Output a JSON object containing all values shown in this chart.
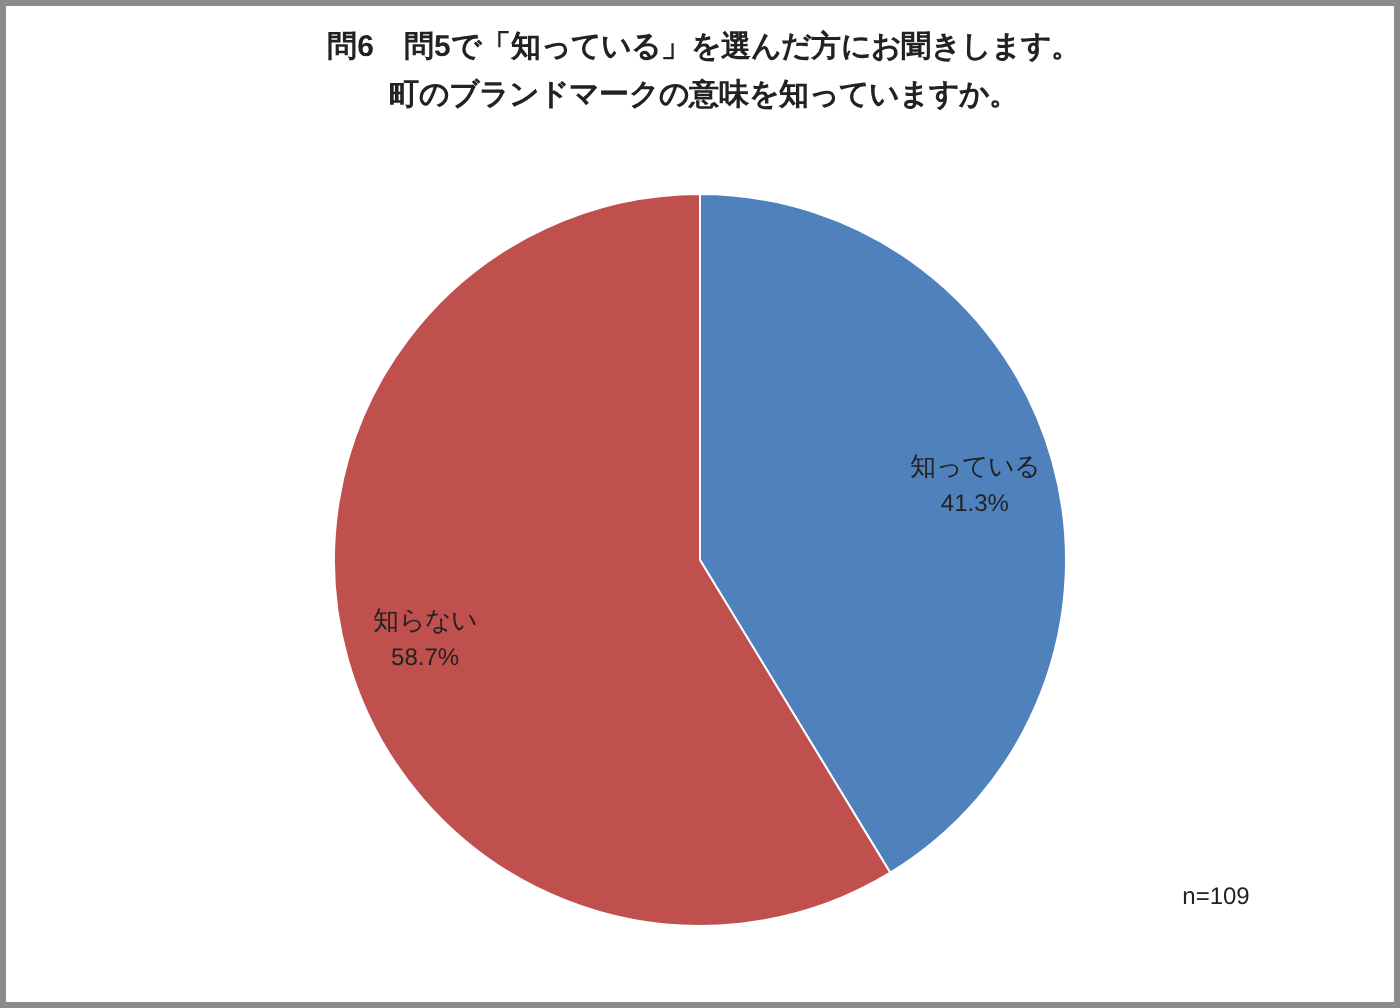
{
  "chart_data": {
    "type": "pie",
    "title": "問6　問5で「知っている」を選んだ方にお聞きします。町のブランドマークの意味を知っていますか。",
    "categories": [
      "知っている",
      "知らない"
    ],
    "values": [
      41.3,
      58.7
    ],
    "colors": [
      "#4f81bd",
      "#c0504d"
    ],
    "value_labels": [
      "41.3%",
      "58.7%"
    ],
    "annotations": [
      "n=109"
    ]
  }
}
